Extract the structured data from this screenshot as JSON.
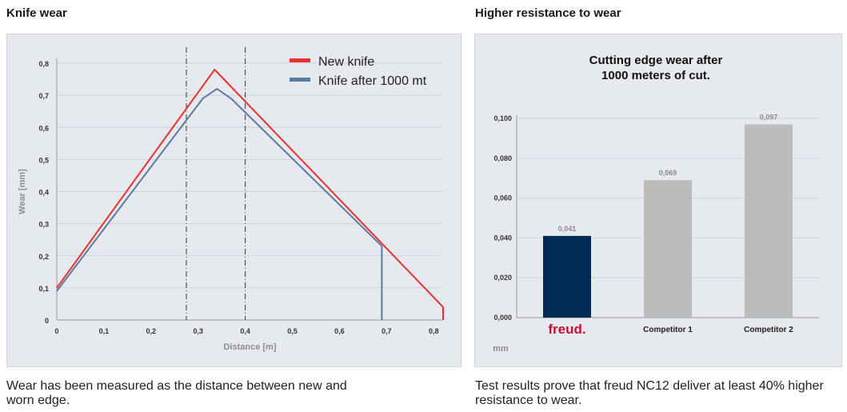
{
  "left": {
    "title": "Knife wear",
    "caption": "Wear has been measured as the distance between new and worn edge.",
    "chart_data": {
      "type": "line",
      "xlabel": "Distance [m]",
      "ylabel": "Wear [mm]",
      "xlim": [
        0,
        0.82
      ],
      "ylim": [
        0,
        0.8
      ],
      "x_ticks": [
        "0",
        "0,1",
        "0,2",
        "0,3",
        "0,4",
        "0,5",
        "0,6",
        "0,7",
        "0,8"
      ],
      "y_ticks": [
        "0",
        "0,1",
        "0,2",
        "0,3",
        "0,4",
        "0,5",
        "0,6",
        "0,7",
        "0,8"
      ],
      "grid": "horizontal",
      "legend_position": "top-right",
      "reference_lines_x": [
        0.275,
        0.4
      ],
      "series": [
        {
          "name": "New knife",
          "color": "#e8312f",
          "x": [
            0,
            0.335,
            0.82,
            0.82
          ],
          "y": [
            0.1,
            0.78,
            0.04,
            0
          ]
        },
        {
          "name": "Knife after 1000 mt",
          "color": "#5b7aa0",
          "x": [
            0,
            0.31,
            0.34,
            0.37,
            0.69,
            0.69
          ],
          "y": [
            0.09,
            0.69,
            0.72,
            0.69,
            0.23,
            0
          ]
        }
      ]
    }
  },
  "right": {
    "title": "Higher resistance to wear",
    "caption": "Test results prove that freud NC12 deliver at least 40% higher resistance to wear.",
    "chart_data": {
      "type": "bar",
      "title": "Cutting edge wear after 1000 meters of cut.",
      "title_lines": [
        "Cutting edge wear after",
        "1000 meters of cut."
      ],
      "categories": [
        "freud.",
        "Competitor 1",
        "Competitor 2"
      ],
      "values": [
        0.041,
        0.069,
        0.097
      ],
      "value_labels": [
        "0,041",
        "0,069",
        "0,097"
      ],
      "colors": [
        "#002b54",
        "#bcbcbc",
        "#bcbcbc"
      ],
      "ylabel": "mm",
      "ylim": [
        0,
        0.1
      ],
      "y_ticks": [
        "0,000",
        "0,020",
        "0,040",
        "0,060",
        "0,080",
        "0,100"
      ],
      "grid": "horizontal"
    }
  },
  "colors": {
    "panel_bg": "#e6e9ee",
    "grid": "#cfd3d8",
    "freud_brand": "#c8102e"
  }
}
